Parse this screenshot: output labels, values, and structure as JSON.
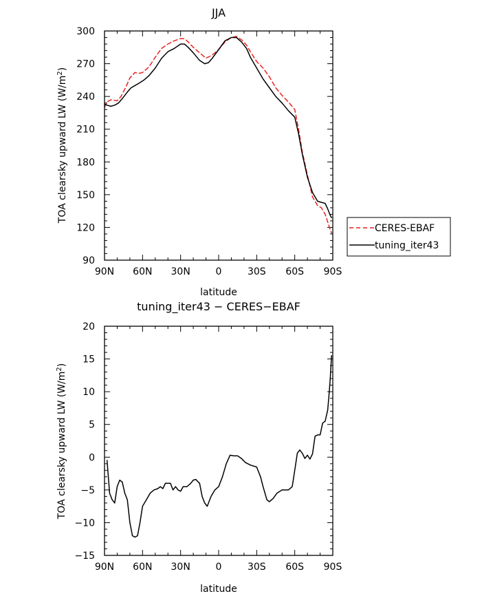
{
  "chart_data": [
    {
      "type": "line",
      "title": "JJA",
      "xlabel": "latitude",
      "ylabel": "TOA clearsky upward LW (W/m",
      "ylabel_sup": "2",
      "ylabel_close": ")",
      "xlim": [
        90,
        -90
      ],
      "ylim": [
        90,
        300
      ],
      "x_ticks": [
        90,
        60,
        30,
        0,
        -30,
        -60,
        -90
      ],
      "x_tick_labels": [
        "90N",
        "60N",
        "30N",
        "0",
        "30S",
        "60S",
        "90S"
      ],
      "y_ticks": [
        90,
        120,
        150,
        180,
        210,
        240,
        270,
        300
      ],
      "y_tick_labels": [
        "90",
        "120",
        "150",
        "180",
        "210",
        "240",
        "270",
        "300"
      ],
      "legend_position": "right",
      "series": [
        {
          "name": "CERES-EBAF",
          "color": "#e8211f",
          "dash": "dashed",
          "x": [
            90,
            88,
            85,
            80,
            77,
            73,
            70,
            66,
            63,
            60,
            55,
            50,
            45,
            40,
            35,
            30,
            27,
            24,
            20,
            15,
            10,
            5,
            0,
            -5,
            -10,
            -14,
            -18,
            -22,
            -25,
            -30,
            -35,
            -40,
            -45,
            -50,
            -55,
            -60,
            -63,
            -66,
            -70,
            -74,
            -78,
            -81,
            -84,
            -86,
            -88,
            -89
          ],
          "y": [
            230,
            235,
            237,
            236,
            240,
            249,
            257,
            262,
            261,
            262,
            267,
            276,
            284,
            288,
            291,
            293,
            293,
            290,
            285,
            280,
            275,
            278,
            283,
            290,
            294,
            295,
            292,
            287,
            281,
            272,
            266,
            258,
            248,
            241,
            235,
            228,
            210,
            189,
            168,
            148,
            140,
            138,
            132,
            125,
            118,
            115
          ]
        },
        {
          "name": "tuning_iter43",
          "color": "#000000",
          "dash": "solid",
          "x": [
            90,
            88,
            85,
            82,
            79,
            76,
            72,
            69,
            66,
            63,
            59,
            55,
            50,
            45,
            40,
            35,
            30,
            27,
            24,
            20,
            15,
            11,
            8,
            5,
            0,
            -5,
            -10,
            -14,
            -18,
            -22,
            -25,
            -30,
            -35,
            -40,
            -45,
            -50,
            -55,
            -60,
            -63,
            -66,
            -70,
            -74,
            -78,
            -81,
            -84,
            -86,
            -88,
            -89
          ],
          "y": [
            233,
            232,
            231,
            232,
            234,
            238,
            244,
            248,
            250,
            252,
            255,
            259,
            266,
            275,
            281,
            284,
            288,
            288,
            285,
            280,
            273,
            270,
            271,
            275,
            283,
            291,
            294,
            294,
            290,
            284,
            276,
            266,
            256,
            248,
            240,
            234,
            227,
            221,
            206,
            187,
            166,
            152,
            144,
            143,
            142,
            137,
            131,
            129
          ]
        }
      ]
    },
    {
      "type": "line",
      "title": "tuning_iter43 − CERES−EBAF",
      "xlabel": "latitude",
      "ylabel": "TOA clearsky upward LW (W/m",
      "ylabel_sup": "2",
      "ylabel_close": ")",
      "xlim": [
        90,
        -90
      ],
      "ylim": [
        -15,
        20
      ],
      "x_ticks": [
        90,
        60,
        30,
        0,
        -30,
        -60,
        -90
      ],
      "x_tick_labels": [
        "90N",
        "60N",
        "30N",
        "0",
        "30S",
        "60S",
        "90S"
      ],
      "y_ticks": [
        -15,
        -10,
        -5,
        0,
        5,
        10,
        15,
        20
      ],
      "y_tick_labels": [
        "−15",
        "−10",
        "−5",
        "0",
        "5",
        "10",
        "15",
        "20"
      ],
      "series": [
        {
          "color": "#000000",
          "dash": "solid",
          "x": [
            88,
            86,
            84,
            82,
            80,
            78,
            76,
            74,
            72,
            70,
            68,
            66,
            64,
            62,
            60,
            57,
            54,
            51,
            48,
            46,
            44,
            42,
            40,
            38,
            36,
            34,
            32,
            30,
            28,
            25,
            22,
            20,
            18,
            15,
            13,
            11,
            9,
            6,
            3,
            0,
            -3,
            -6,
            -9,
            -12,
            -15,
            -18,
            -21,
            -25,
            -30,
            -33,
            -35,
            -38,
            -40,
            -43,
            -46,
            -50,
            -55,
            -58,
            -60,
            -62,
            -64,
            -66,
            -68,
            -70,
            -72,
            -74,
            -76,
            -78,
            -80,
            -82,
            -84,
            -86,
            -87,
            -88,
            -89
          ],
          "y": [
            -0.5,
            -5.5,
            -6.5,
            -7,
            -4.5,
            -3.5,
            -3.8,
            -5.5,
            -6.5,
            -10,
            -12,
            -12.2,
            -12,
            -10,
            -7.5,
            -6.5,
            -5.5,
            -5,
            -4.8,
            -4.5,
            -4.8,
            -4,
            -4,
            -4,
            -5,
            -4.5,
            -5,
            -5.2,
            -4.5,
            -4.5,
            -4,
            -3.5,
            -3.4,
            -4,
            -6,
            -7,
            -7.5,
            -6,
            -5,
            -4.5,
            -3,
            -1,
            0.3,
            0.2,
            0.2,
            -0.2,
            -0.8,
            -1.2,
            -1.5,
            -3,
            -4.5,
            -6.5,
            -6.8,
            -6.3,
            -5.5,
            -5,
            -5,
            -4.5,
            -2,
            0.6,
            1.1,
            0.6,
            -0.2,
            0.3,
            -0.3,
            0.5,
            3.2,
            3.4,
            3.4,
            5.2,
            5.5,
            7.2,
            9.5,
            12,
            15.5
          ]
        }
      ]
    }
  ]
}
